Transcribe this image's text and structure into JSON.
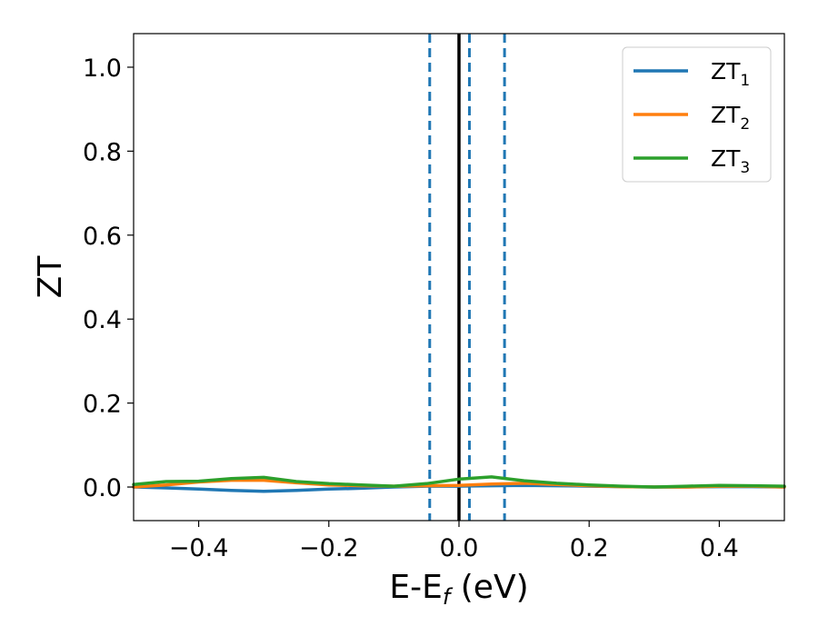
{
  "chart_data": {
    "type": "line",
    "title": "",
    "xlabel": "E-E",
    "xlabel_sub": "f",
    "xlabel_unit": " (eV)",
    "ylabel": "ZT",
    "xlim": [
      -0.5,
      0.5
    ],
    "ylim": [
      -0.08,
      1.08
    ],
    "x_ticks": [
      -0.4,
      -0.2,
      0.0,
      0.2,
      0.4
    ],
    "x_tick_labels": [
      "−0.4",
      "−0.2",
      "0.0",
      "0.2",
      "0.4"
    ],
    "y_ticks": [
      0.0,
      0.2,
      0.4,
      0.6,
      0.8,
      1.0
    ],
    "y_tick_labels": [
      "0.0",
      "0.2",
      "0.4",
      "0.6",
      "0.8",
      "1.0"
    ],
    "grid": false,
    "legend_position": "top-right",
    "vlines": [
      {
        "x": -0.045,
        "style": "dashed",
        "color": "#1f77b4"
      },
      {
        "x": 0.0,
        "style": "solid",
        "color": "#000000"
      },
      {
        "x": 0.016,
        "style": "dashed",
        "color": "#1f77b4"
      },
      {
        "x": 0.07,
        "style": "dashed",
        "color": "#1f77b4"
      }
    ],
    "x": [
      -0.5,
      -0.45,
      -0.4,
      -0.35,
      -0.3,
      -0.25,
      -0.2,
      -0.15,
      -0.1,
      -0.05,
      0.0,
      0.05,
      0.1,
      0.15,
      0.2,
      0.25,
      0.3,
      0.35,
      0.4,
      0.45,
      0.5
    ],
    "series": [
      {
        "name": "ZT",
        "sub": "1",
        "color": "#1f77b4",
        "values": [
          0.0,
          -0.002,
          -0.005,
          -0.008,
          -0.01,
          -0.008,
          -0.005,
          -0.003,
          0.0,
          0.002,
          0.002,
          0.003,
          0.004,
          0.003,
          0.002,
          0.001,
          0.0,
          0.0,
          0.001,
          0.001,
          0.0
        ]
      },
      {
        "name": "ZT",
        "sub": "2",
        "color": "#ff7f0e",
        "values": [
          0.0,
          0.005,
          0.012,
          0.016,
          0.016,
          0.01,
          0.005,
          0.003,
          0.002,
          0.003,
          0.004,
          0.007,
          0.009,
          0.006,
          0.003,
          0.001,
          0.0,
          0.0,
          0.002,
          0.002,
          0.0
        ]
      },
      {
        "name": "ZT",
        "sub": "3",
        "color": "#2ca02c",
        "values": [
          0.006,
          0.013,
          0.014,
          0.02,
          0.023,
          0.013,
          0.008,
          0.005,
          0.002,
          0.008,
          0.019,
          0.024,
          0.015,
          0.009,
          0.005,
          0.002,
          0.0,
          0.002,
          0.004,
          0.003,
          0.002
        ]
      }
    ]
  }
}
